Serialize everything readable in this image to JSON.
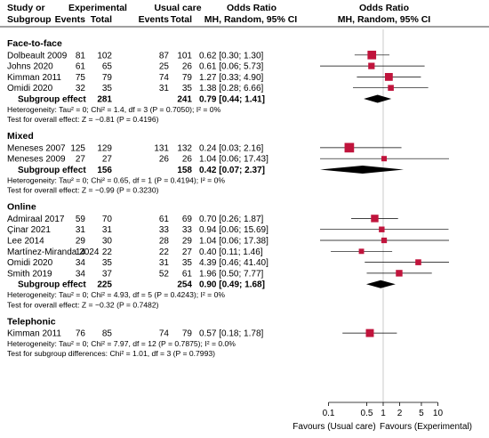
{
  "header": {
    "col_study": "Study or",
    "col_subgroup": "Subgroup",
    "exp_group": "Experimental",
    "ctrl_group": "Usual care",
    "events": "Events",
    "total": "Total",
    "or_title": "Odds Ratio",
    "or_method": "MH, Random, 95% CI",
    "plot_title": "Odds Ratio",
    "plot_method": "MH, Random, 95% CI"
  },
  "chart_data": {
    "type": "forest",
    "x_scale": "log",
    "xlim": [
      0.07,
      16
    ],
    "null_line": 1,
    "x_ticks": [
      {
        "value": 0.1,
        "label": "0.1"
      },
      {
        "value": 0.5,
        "label": "0.5"
      },
      {
        "value": 1,
        "label": "1"
      },
      {
        "value": 2,
        "label": "2"
      },
      {
        "value": 5,
        "label": "5"
      },
      {
        "value": 10,
        "label": "10"
      }
    ],
    "favours_left": "Favours (Usual care)",
    "favours_right": "Favours (Experimental)",
    "colors": {
      "study_marker": "#c0143c",
      "line": "#000000",
      "diamond": "#000000"
    },
    "subgroups": [
      {
        "name": "Face-to-face",
        "studies": [
          {
            "study": "Dolbeault 2009",
            "exp_events": "81",
            "exp_total": "102",
            "ctrl_events": "87",
            "ctrl_total": "101",
            "or_text": "0.62 [0.30; 1.30]",
            "or": 0.62,
            "lo": 0.3,
            "hi": 1.3
          },
          {
            "study": "Johns 2020",
            "exp_events": "61",
            "exp_total": "65",
            "ctrl_events": "25",
            "ctrl_total": "26",
            "or_text": "0.61 [0.06; 5.73]",
            "or": 0.61,
            "lo": 0.06,
            "hi": 5.73
          },
          {
            "study": "Kimman 2011",
            "exp_events": "75",
            "exp_total": "79",
            "ctrl_events": "74",
            "ctrl_total": "79",
            "or_text": "1.27 [0.33; 4.90]",
            "or": 1.27,
            "lo": 0.33,
            "hi": 4.9
          },
          {
            "study": "Omidi 2020",
            "exp_events": "32",
            "exp_total": "35",
            "ctrl_events": "31",
            "ctrl_total": "35",
            "or_text": "1.38 [0.28; 6.66]",
            "or": 1.38,
            "lo": 0.28,
            "hi": 6.66
          }
        ],
        "effect_label": "Subgroup effect",
        "effect_exp_total": "281",
        "effect_ctrl_total": "241",
        "effect_text": "0.79 [0.44; 1.41]",
        "effect_or": 0.79,
        "effect_lo": 0.44,
        "effect_hi": 1.41,
        "heterogeneity": "Heterogeneity: Tau² = 0; Chi² = 1.4, df = 3 (P = 0.7050); I² = 0%",
        "overall_test": "Test for overall effect: Z = −0.81 (P = 0.4196)"
      },
      {
        "name": "Mixed",
        "studies": [
          {
            "study": "Meneses 2007",
            "exp_events": "125",
            "exp_total": "129",
            "ctrl_events": "131",
            "ctrl_total": "132",
            "or_text": "0.24 [0.03; 2.16]",
            "or": 0.24,
            "lo": 0.03,
            "hi": 2.16
          },
          {
            "study": "Meneses 2009",
            "exp_events": "27",
            "exp_total": "27",
            "ctrl_events": "26",
            "ctrl_total": "26",
            "or_text": "1.04 [0.06; 17.43]",
            "or": 1.04,
            "lo": 0.06,
            "hi": 17.43
          }
        ],
        "effect_label": "Subgroup effect",
        "effect_exp_total": "156",
        "effect_ctrl_total": "158",
        "effect_text": "0.42 [0.07; 2.37]",
        "effect_or": 0.42,
        "effect_lo": 0.07,
        "effect_hi": 2.37,
        "heterogeneity": "Heterogeneity: Tau² = 0; Chi² = 0.65, df = 1 (P = 0.4194); I² = 0%",
        "overall_test": "Test for overall effect: Z = −0.99 (P = 0.3230)"
      },
      {
        "name": "Online",
        "studies": [
          {
            "study": "Admiraal 2017",
            "exp_events": "59",
            "exp_total": "70",
            "ctrl_events": "61",
            "ctrl_total": "69",
            "or_text": "0.70 [0.26; 1.87]",
            "or": 0.7,
            "lo": 0.26,
            "hi": 1.87
          },
          {
            "study": "Çinar 2021",
            "exp_events": "31",
            "exp_total": "31",
            "ctrl_events": "33",
            "ctrl_total": "33",
            "or_text": "0.94 [0.06; 15.69]",
            "or": 0.94,
            "lo": 0.06,
            "hi": 15.69
          },
          {
            "study": "Lee 2014",
            "exp_events": "29",
            "exp_total": "30",
            "ctrl_events": "28",
            "ctrl_total": "29",
            "or_text": "1.04 [0.06; 17.38]",
            "or": 1.04,
            "lo": 0.06,
            "hi": 17.38
          },
          {
            "study": "Martínez-Miranda 2024",
            "exp_events": "14",
            "exp_total": "22",
            "ctrl_events": "22",
            "ctrl_total": "27",
            "or_text": "0.40 [0.11; 1.46]",
            "or": 0.4,
            "lo": 0.11,
            "hi": 1.46
          },
          {
            "study": "Omidi 2020",
            "exp_events": "34",
            "exp_total": "35",
            "ctrl_events": "31",
            "ctrl_total": "35",
            "or_text": "4.39 [0.46; 41.40]",
            "or": 4.39,
            "lo": 0.46,
            "hi": 41.4
          },
          {
            "study": "Smith 2019",
            "exp_events": "34",
            "exp_total": "37",
            "ctrl_events": "52",
            "ctrl_total": "61",
            "or_text": "1.96 [0.50; 7.77]",
            "or": 1.96,
            "lo": 0.5,
            "hi": 7.77
          }
        ],
        "effect_label": "Subgroup effect",
        "effect_exp_total": "225",
        "effect_ctrl_total": "254",
        "effect_text": "0.90 [0.49; 1.68]",
        "effect_or": 0.9,
        "effect_lo": 0.49,
        "effect_hi": 1.68,
        "heterogeneity": "Heterogeneity: Tau² = 0; Chi² = 4.93, df = 5 (P = 0.4243); I² = 0%",
        "overall_test": "Test for overall effect: Z = −0.32 (P = 0.7482)"
      },
      {
        "name": "Telephonic",
        "studies": [
          {
            "study": "Kimman 2011",
            "exp_events": "76",
            "exp_total": "85",
            "ctrl_events": "74",
            "ctrl_total": "79",
            "or_text": "0.57 [0.18; 1.78]",
            "or": 0.57,
            "lo": 0.18,
            "hi": 1.78
          }
        ]
      }
    ],
    "footer_heterogeneity": "Heterogeneity: Tau² = 0; Chi² = 7.97, df = 12 (P = 0.7875); I² = 0.0%",
    "footer_subgroup_test": "Test for subgroup differences: Chi² = 1.01, df = 3 (P = 0.7993)"
  }
}
